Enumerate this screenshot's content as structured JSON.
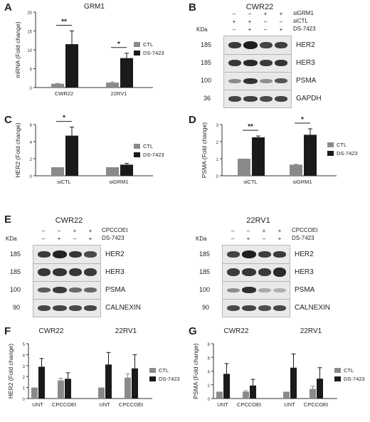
{
  "figure": {
    "panel_labels": [
      "A",
      "B",
      "C",
      "D",
      "E",
      "F",
      "G"
    ],
    "colors": {
      "ctl": "#8a8a8a",
      "ds": "#1a1a1a",
      "axis": "#333333"
    }
  },
  "panelB": {
    "title": "CWR22",
    "kda": "KDa",
    "row_labels": [
      "siGRM1",
      "siCTL",
      "DS-7423"
    ],
    "signs": [
      [
        "–",
        "–",
        "+",
        "+"
      ],
      [
        "+",
        "+",
        "–",
        "–"
      ],
      [
        "–",
        "+",
        "–",
        "+"
      ]
    ],
    "bands": [
      {
        "name": "HER2",
        "mw": "185"
      },
      {
        "name": "HER3",
        "mw": "185"
      },
      {
        "name": "PSMA",
        "mw": "100"
      },
      {
        "name": "GAPDH",
        "mw": "36"
      }
    ]
  },
  "panelE": {
    "left_title": "CWR22",
    "right_title": "22RV1",
    "kda": "KDa",
    "row_labels": [
      "CPCCOEt",
      "DS-7423"
    ],
    "signs": [
      [
        "–",
        "–",
        "+",
        "+"
      ],
      [
        "–",
        "+",
        "–",
        "+"
      ]
    ],
    "bands": [
      {
        "name": "HER2",
        "mw": "185"
      },
      {
        "name": "HER3",
        "mw": "185"
      },
      {
        "name": "PSMA",
        "mw": "100"
      },
      {
        "name": "CALNEXIN",
        "mw": "90"
      }
    ]
  },
  "chart_data": [
    {
      "panel": "A",
      "type": "bar",
      "title": "GRM1",
      "ylabel": "mRNA (Fold change)",
      "categories": [
        "CWR22",
        "22RV1"
      ],
      "ylim": [
        0,
        20
      ],
      "yticks": [
        0,
        5,
        10,
        15,
        20
      ],
      "series": [
        {
          "name": "CTL",
          "values": [
            1.0,
            1.3
          ],
          "errors": [
            0.1,
            0.2
          ]
        },
        {
          "name": "DS-7423",
          "values": [
            11.5,
            7.8
          ],
          "errors": [
            3.5,
            1.3
          ]
        }
      ],
      "significance": [
        "**",
        "*"
      ],
      "legend": "right"
    },
    {
      "panel": "C",
      "type": "bar",
      "title": "",
      "ylabel": "HER2 (Fold change)",
      "categories": [
        "siCTL",
        "siGRM1"
      ],
      "ylim": [
        0,
        6
      ],
      "yticks": [
        0,
        2,
        4,
        6
      ],
      "series": [
        {
          "name": "CTL",
          "values": [
            1.0,
            1.0
          ],
          "errors": [
            0,
            0
          ]
        },
        {
          "name": "DS-7423",
          "values": [
            4.7,
            1.3
          ],
          "errors": [
            1.0,
            0.15
          ]
        }
      ],
      "significance": [
        "*",
        ""
      ],
      "legend": "right"
    },
    {
      "panel": "D",
      "type": "bar",
      "title": "",
      "ylabel": "PSMA (Fold change)",
      "categories": [
        "siCTL",
        "siGRM1"
      ],
      "ylim": [
        0,
        3
      ],
      "yticks": [
        0,
        1,
        2,
        3
      ],
      "series": [
        {
          "name": "CTL",
          "values": [
            1.0,
            0.65
          ],
          "errors": [
            0,
            0.02
          ]
        },
        {
          "name": "DS-7423",
          "values": [
            2.25,
            2.4
          ],
          "errors": [
            0.08,
            0.35
          ]
        }
      ],
      "significance": [
        "**",
        "*"
      ],
      "legend": "right"
    },
    {
      "panel": "F",
      "type": "bar",
      "title": "",
      "ylabel": "HER2 (Fold change)",
      "group_labels": [
        "CWR22",
        "22RV1"
      ],
      "categories": [
        "UNT",
        "CPCCOEt",
        "UNT",
        "CPCCOEt"
      ],
      "ylim": [
        0,
        5
      ],
      "yticks": [
        0,
        1,
        2,
        3,
        4,
        5
      ],
      "series": [
        {
          "name": "CTL",
          "values": [
            1.0,
            1.65,
            1.0,
            1.9
          ],
          "errors": [
            0,
            0.2,
            0,
            0.35
          ]
        },
        {
          "name": "DS-7423",
          "values": [
            2.9,
            1.8,
            3.1,
            2.75
          ],
          "errors": [
            0.75,
            0.55,
            1.1,
            1.25
          ]
        }
      ],
      "significance": [],
      "legend": "right"
    },
    {
      "panel": "G",
      "type": "bar",
      "title": "",
      "ylabel": "PSMA (Fold change)",
      "group_labels": [
        "CWR22",
        "22RV1"
      ],
      "categories": [
        "UNT",
        "CPCCOEt",
        "UNT",
        "CPCCOEt"
      ],
      "ylim": [
        0,
        8
      ],
      "yticks": [
        0,
        2,
        4,
        6,
        8
      ],
      "series": [
        {
          "name": "CTL",
          "values": [
            1.0,
            1.0,
            1.0,
            1.4
          ],
          "errors": [
            0,
            0.15,
            0,
            0.4
          ]
        },
        {
          "name": "DS-7423",
          "values": [
            3.6,
            1.9,
            4.5,
            2.9
          ],
          "errors": [
            1.5,
            0.9,
            2.0,
            1.6
          ]
        }
      ],
      "significance": [],
      "legend": "right"
    }
  ]
}
